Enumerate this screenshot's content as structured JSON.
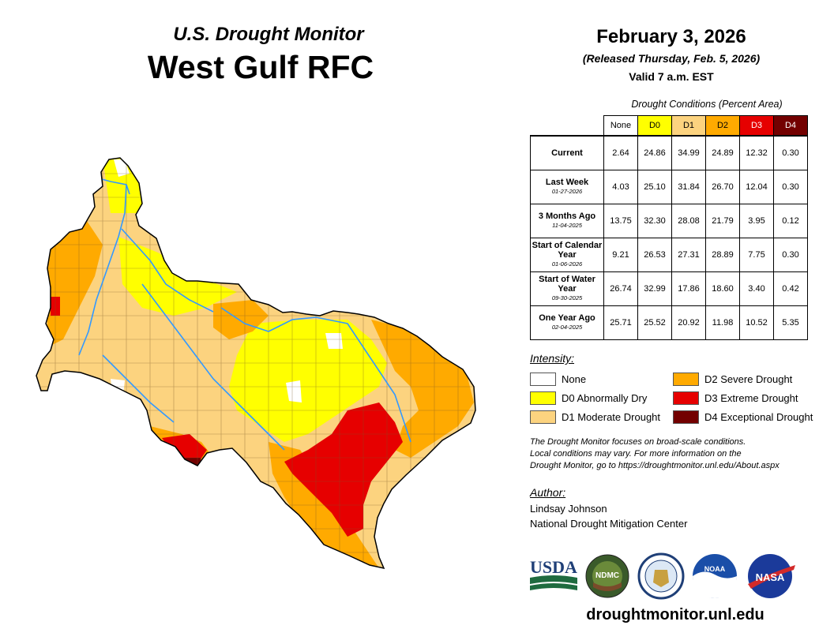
{
  "header": {
    "subtitle": "U.S. Drought Monitor",
    "region": "West Gulf RFC",
    "date": "February 3, 2026",
    "released": "(Released Thursday, Feb. 5, 2026)",
    "valid": "Valid 7 a.m. EST"
  },
  "table": {
    "title": "Drought Conditions (Percent Area)",
    "columns": [
      "None",
      "D0",
      "D1",
      "D2",
      "D3",
      "D4"
    ],
    "column_colors": [
      "#ffffff",
      "#ffff00",
      "#fcd37f",
      "#ffaa00",
      "#e60000",
      "#730000"
    ],
    "rows": [
      {
        "label": "Current",
        "date": "",
        "values": [
          "2.64",
          "24.86",
          "34.99",
          "24.89",
          "12.32",
          "0.30"
        ]
      },
      {
        "label": "Last Week",
        "date": "01-27-2026",
        "values": [
          "4.03",
          "25.10",
          "31.84",
          "26.70",
          "12.04",
          "0.30"
        ]
      },
      {
        "label": "3 Months Ago",
        "date": "11-04-2025",
        "values": [
          "13.75",
          "32.30",
          "28.08",
          "21.79",
          "3.95",
          "0.12"
        ]
      },
      {
        "label": "Start of Calendar Year",
        "date": "01-06-2026",
        "values": [
          "9.21",
          "26.53",
          "27.31",
          "28.89",
          "7.75",
          "0.30"
        ]
      },
      {
        "label": "Start of Water Year",
        "date": "09-30-2025",
        "values": [
          "26.74",
          "32.99",
          "17.86",
          "18.60",
          "3.40",
          "0.42"
        ]
      },
      {
        "label": "One Year Ago",
        "date": "02-04-2025",
        "values": [
          "25.71",
          "25.52",
          "20.92",
          "11.98",
          "10.52",
          "5.35"
        ]
      }
    ]
  },
  "legend": {
    "title": "Intensity:",
    "items": [
      {
        "label": "None",
        "color": "#ffffff"
      },
      {
        "label": "D0 Abnormally Dry",
        "color": "#ffff00"
      },
      {
        "label": "D1 Moderate Drought",
        "color": "#fcd37f"
      },
      {
        "label": "D2 Severe Drought",
        "color": "#ffaa00"
      },
      {
        "label": "D3 Extreme Drought",
        "color": "#e60000"
      },
      {
        "label": "D4 Exceptional Drought",
        "color": "#730000"
      }
    ]
  },
  "note": {
    "line1": "The Drought Monitor focuses on broad-scale conditions.",
    "line2": "Local conditions may vary. For more information on the",
    "line3": "Drought Monitor, go to https://droughtmonitor.unl.edu/About.aspx"
  },
  "author": {
    "title": "Author:",
    "name": "Lindsay Johnson",
    "org": "National Drought Mitigation Center"
  },
  "logos": {
    "usda": "USDA",
    "ndmc": "NDMC",
    "noaa": "NOAA",
    "nasa": "NASA"
  },
  "footer": {
    "site": "droughtmonitor.unl.edu"
  },
  "map": {
    "river_color": "#3399ff",
    "boundary_color": "#000000"
  }
}
